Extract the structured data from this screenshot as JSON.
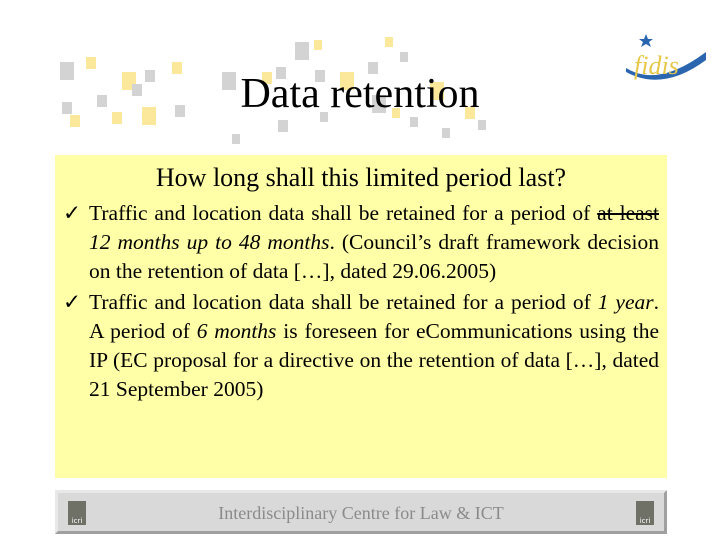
{
  "slide": {
    "title": "Data retention",
    "logo_text": "fidis",
    "question": "How long shall this limited period last?",
    "bullets": [
      {
        "a": "Traffic and location data shall be retained for a period of ",
        "strike": "at least",
        "b": " ",
        "italic": "12 months up to 48 months",
        "c": ". (Council’s draft framework decision on the retention of data […], dated 29.06.2005)"
      },
      {
        "a": "Traffic and location data shall be retained for a period of ",
        "italic": "1 year",
        "b": ". A period of ",
        "italic2": "6 months",
        "c": " is foreseen for eCommunications using the IP (EC proposal for a directive on the retention of data […], dated 21 September 2005)"
      }
    ],
    "check_mark": "✓",
    "footer": "Interdisciplinary Centre for Law & ICT",
    "footer_logo_text": "icri"
  },
  "colors": {
    "box": "#ffffa8",
    "square_gray": "#d3d3d3",
    "square_yellow": "#fbe89a"
  }
}
